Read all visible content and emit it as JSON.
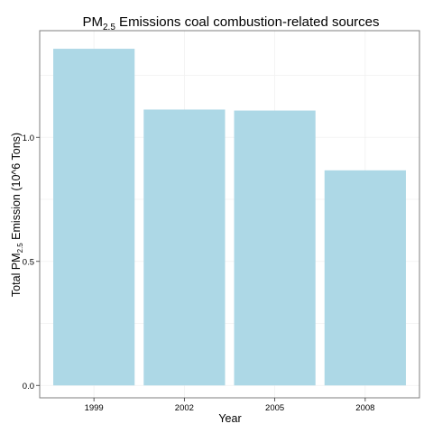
{
  "chart_data": {
    "type": "bar",
    "title": {
      "pre": "PM",
      "sub": "2.5",
      "post": " Emissions coal combustion-related sources"
    },
    "xlabel": "Year",
    "ylabel": {
      "pre": "Total PM",
      "sub": "2.5",
      "post": " Emission (10^6 Tons)"
    },
    "categories": [
      "1999",
      "2002",
      "2005",
      "2008"
    ],
    "values": [
      1.357,
      1.112,
      1.108,
      0.867
    ],
    "ylim": [
      -0.05,
      1.43
    ],
    "yticks": [
      0.0,
      0.5,
      1.0
    ],
    "ytick_labels": [
      "0.0",
      "0.5",
      "1.0"
    ],
    "grid": true,
    "bar_color": "#add8e6",
    "grid_color": "#f0f0f0",
    "panel_border_color": "#7f7f7f"
  }
}
